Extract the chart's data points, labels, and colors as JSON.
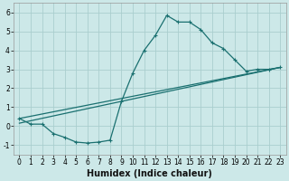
{
  "xlabel": "Humidex (Indice chaleur)",
  "xlim": [
    -0.5,
    23.5
  ],
  "ylim": [
    -1.5,
    6.5
  ],
  "xticks": [
    0,
    1,
    2,
    3,
    4,
    5,
    6,
    7,
    8,
    9,
    10,
    11,
    12,
    13,
    14,
    15,
    16,
    17,
    18,
    19,
    20,
    21,
    22,
    23
  ],
  "yticks": [
    -1,
    0,
    1,
    2,
    3,
    4,
    5,
    6
  ],
  "bg_color": "#cce8e8",
  "grid_color": "#aacece",
  "line_color": "#1a7070",
  "line1_x": [
    0,
    1,
    2,
    3,
    4,
    5,
    6,
    7,
    8,
    9,
    10,
    11,
    12,
    13,
    14,
    15,
    16,
    17,
    18,
    19,
    20,
    21,
    22,
    23
  ],
  "line1_y": [
    0.4,
    0.1,
    0.1,
    -0.4,
    -0.6,
    -0.85,
    -0.9,
    -0.85,
    -0.75,
    1.3,
    2.8,
    4.0,
    4.8,
    5.85,
    5.5,
    5.5,
    5.1,
    4.4,
    4.1,
    3.5,
    2.9,
    3.0,
    3.0,
    3.1
  ],
  "line2_x": [
    0,
    23
  ],
  "line2_y": [
    0.4,
    3.1
  ],
  "line3_x": [
    0,
    23
  ],
  "line3_y": [
    0.15,
    3.1
  ],
  "xlabel_fontsize": 7,
  "tick_fontsize": 5.5
}
